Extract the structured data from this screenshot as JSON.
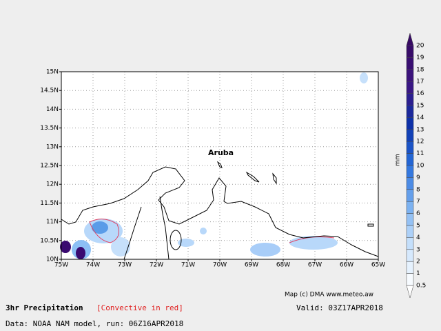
{
  "map": {
    "title": "3hr Precipitation",
    "convective_note": "[Convective in red]",
    "valid": "Valid: 03Z17APR2018",
    "data_source": "Data: NOAA NAM model, run: 06Z16APR2018",
    "credit": "Map (c) DMA www.meteo.aw",
    "place_label": "Aruba",
    "lat_labels": [
      "15N",
      "14.5N",
      "14N",
      "13.5N",
      "13N",
      "12.5N",
      "12N",
      "11.5N",
      "11N",
      "10.5N",
      "10N"
    ],
    "lon_labels": [
      "75W",
      "74W",
      "73W",
      "72W",
      "71W",
      "70W",
      "69W",
      "68W",
      "67W",
      "66W",
      "65W"
    ],
    "colorbar": {
      "unit": "mm",
      "levels": [
        20,
        19,
        18,
        17,
        16,
        15,
        14,
        13,
        12,
        11,
        10,
        9,
        8,
        7,
        6,
        5,
        4,
        3,
        2,
        1,
        0.5
      ]
    }
  }
}
